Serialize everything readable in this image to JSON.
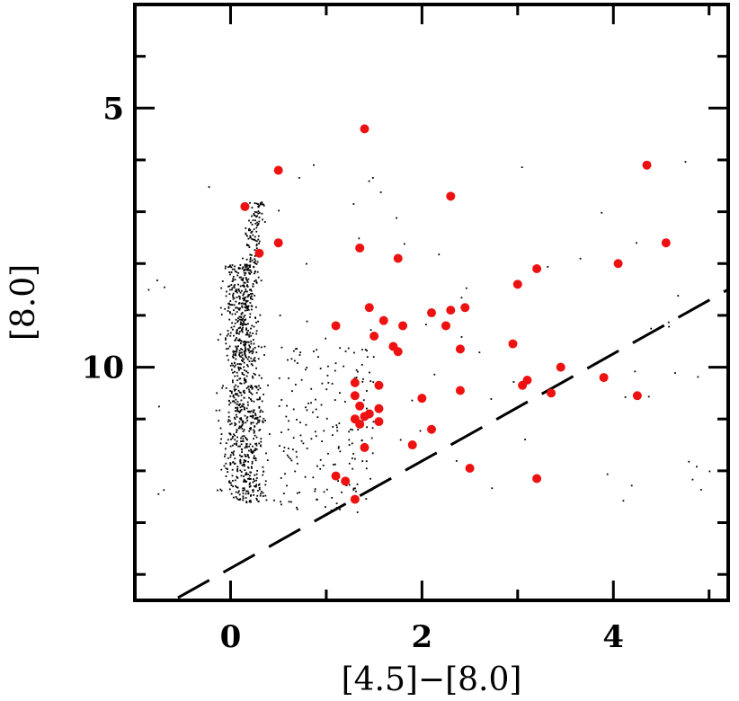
{
  "chart_data": {
    "type": "scatter",
    "title": "",
    "xlabel": "[4.5]−[8.0]",
    "ylabel": "[8.0]",
    "xlim": [
      -1.0,
      5.2
    ],
    "ylim": [
      14.5,
      3.0
    ],
    "y_inverted": true,
    "grid": false,
    "legend": "none",
    "x_ticks": [
      {
        "value": 0,
        "label": "0"
      },
      {
        "value": 2,
        "label": "2"
      },
      {
        "value": 4,
        "label": "4"
      }
    ],
    "x_minor_ticks": [
      -1,
      1,
      3,
      5
    ],
    "y_ticks": [
      {
        "value": 5,
        "label": "5"
      },
      {
        "value": 10,
        "label": "10"
      }
    ],
    "y_minor_ticks": [
      4,
      6,
      7,
      8,
      9,
      11,
      12,
      13,
      14
    ],
    "colors": {
      "field_stars": "#000000",
      "highlighted": "#ee1111",
      "dashed_line": "#000000"
    },
    "dashed_line": {
      "x": [
        -0.55,
        5.2
      ],
      "y": [
        14.45,
        8.5
      ],
      "style": "dashed"
    },
    "series": [
      {
        "marker": "circle",
        "color": "#ee1111",
        "points": [
          [
            1.4,
            5.4
          ],
          [
            0.5,
            6.2
          ],
          [
            2.3,
            6.7
          ],
          [
            0.15,
            6.9
          ],
          [
            4.35,
            6.1
          ],
          [
            1.35,
            7.7
          ],
          [
            1.75,
            7.9
          ],
          [
            0.5,
            7.6
          ],
          [
            0.3,
            7.8
          ],
          [
            4.05,
            8.0
          ],
          [
            4.55,
            7.6
          ],
          [
            3.2,
            8.1
          ],
          [
            3.0,
            8.4
          ],
          [
            1.45,
            8.85
          ],
          [
            2.1,
            8.95
          ],
          [
            2.3,
            8.9
          ],
          [
            2.45,
            8.85
          ],
          [
            1.6,
            9.1
          ],
          [
            1.1,
            9.2
          ],
          [
            1.8,
            9.2
          ],
          [
            2.25,
            9.2
          ],
          [
            1.5,
            9.4
          ],
          [
            1.7,
            9.6
          ],
          [
            1.75,
            9.7
          ],
          [
            2.4,
            9.65
          ],
          [
            2.95,
            9.55
          ],
          [
            1.3,
            10.3
          ],
          [
            1.55,
            10.35
          ],
          [
            3.1,
            10.25
          ],
          [
            3.05,
            10.35
          ],
          [
            3.45,
            10.0
          ],
          [
            3.9,
            10.2
          ],
          [
            3.35,
            10.5
          ],
          [
            4.25,
            10.55
          ],
          [
            1.3,
            10.55
          ],
          [
            2.0,
            10.6
          ],
          [
            2.4,
            10.45
          ],
          [
            1.35,
            10.75
          ],
          [
            1.55,
            10.8
          ],
          [
            1.45,
            10.9
          ],
          [
            1.3,
            11.0
          ],
          [
            1.35,
            11.1
          ],
          [
            1.4,
            10.95
          ],
          [
            1.55,
            11.05
          ],
          [
            2.1,
            11.2
          ],
          [
            1.9,
            11.5
          ],
          [
            1.4,
            11.55
          ],
          [
            1.1,
            12.1
          ],
          [
            1.2,
            12.2
          ],
          [
            2.5,
            11.95
          ],
          [
            3.2,
            12.15
          ],
          [
            1.3,
            12.55
          ]
        ]
      }
    ]
  }
}
